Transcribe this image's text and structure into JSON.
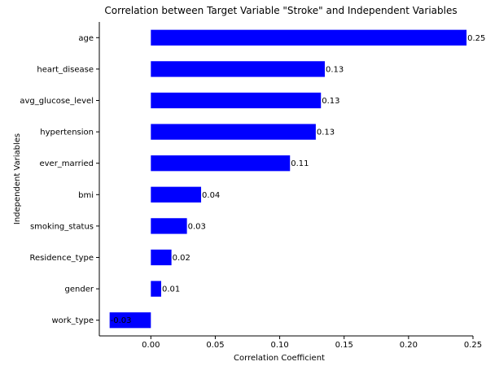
{
  "chart_data": {
    "type": "bar",
    "orientation": "horizontal",
    "title": "Correlation between Target Variable \"Stroke\" and Independent Variables",
    "xlabel": "Correlation Coefficient",
    "ylabel": "Independent Variables",
    "categories": [
      "age",
      "heart_disease",
      "avg_glucose_level",
      "hypertension",
      "ever_married",
      "bmi",
      "smoking_status",
      "Residence_type",
      "gender",
      "work_type"
    ],
    "values": [
      0.245,
      0.135,
      0.132,
      0.128,
      0.108,
      0.039,
      0.028,
      0.016,
      0.008,
      -0.032
    ],
    "data_labels": [
      "0.25",
      "0.13",
      "0.13",
      "0.13",
      "0.11",
      "0.04",
      "0.03",
      "0.02",
      "0.01",
      "-0.03"
    ],
    "xlim": [
      -0.04,
      0.25
    ],
    "xticks": [
      0.0,
      0.05,
      0.1,
      0.15,
      0.2,
      0.25
    ],
    "xtick_labels": [
      "0.00",
      "0.05",
      "0.10",
      "0.15",
      "0.20",
      "0.25"
    ],
    "bar_color": "#0000ff",
    "grid": false,
    "legend": "none"
  }
}
